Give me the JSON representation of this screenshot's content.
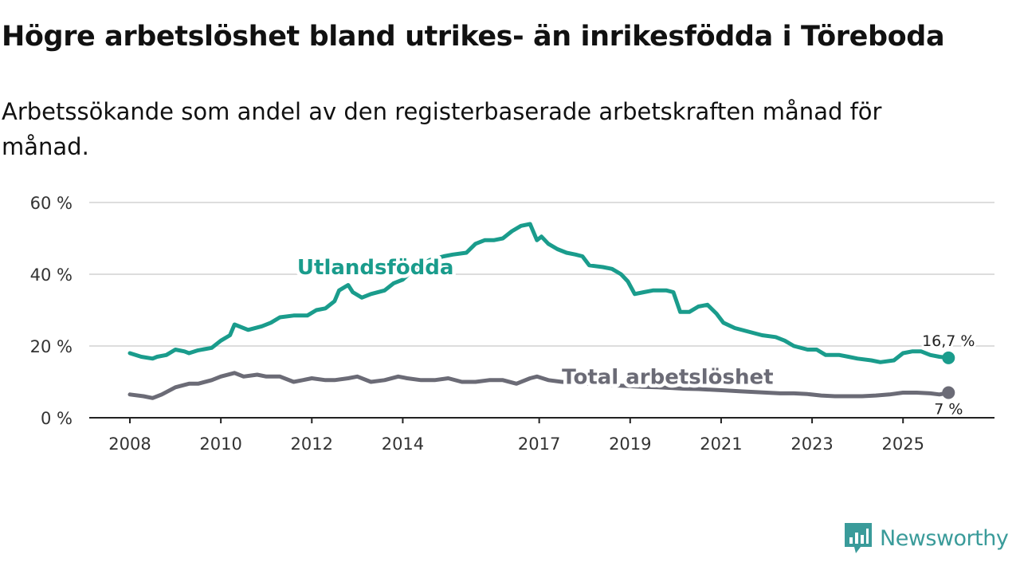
{
  "title": "Högre arbetslöshet bland utrikes- än inrikesfödda i Töreboda",
  "subtitle": "Arbetssökande som andel av den registerbaserade arbetskraften månad för månad.",
  "brand": {
    "name": "Newsworthy",
    "color": "#3a9b9a",
    "icon": "bar-chart-logo-icon"
  },
  "chart_data": {
    "type": "line",
    "title": "Högre arbetslöshet bland utrikes- än inrikesfödda i Töreboda",
    "xlabel": "",
    "ylabel": "",
    "xlim": [
      2008.0,
      2026.1
    ],
    "ylim": [
      0,
      60
    ],
    "yticks": [
      0,
      20,
      40,
      60
    ],
    "ytick_labels": [
      "0 %",
      "20 %",
      "40 %",
      "60 %"
    ],
    "xticks": [
      2008,
      2010,
      2012,
      2014,
      2017,
      2019,
      2021,
      2023,
      2025
    ],
    "xtick_labels": [
      "2008",
      "2010",
      "2012",
      "2014",
      "2017",
      "2019",
      "2021",
      "2023",
      "2025"
    ],
    "grid": true,
    "series": [
      {
        "name": "Utlandsfödda",
        "color": "#1a9c8c",
        "end_label": "16,7 %",
        "x": [
          2008.0,
          2008.25,
          2008.5,
          2008.6,
          2008.8,
          2009.0,
          2009.2,
          2009.3,
          2009.5,
          2009.8,
          2010.0,
          2010.2,
          2010.3,
          2010.6,
          2010.9,
          2011.1,
          2011.3,
          2011.6,
          2011.9,
          2012.1,
          2012.3,
          2012.5,
          2012.6,
          2012.8,
          2012.9,
          2013.1,
          2013.3,
          2013.6,
          2013.8,
          2014.0,
          2014.3,
          2014.6,
          2014.9,
          2015.1,
          2015.4,
          2015.6,
          2015.8,
          2016.0,
          2016.2,
          2016.4,
          2016.6,
          2016.8,
          2016.95,
          2017.05,
          2017.2,
          2017.4,
          2017.6,
          2017.8,
          2017.95,
          2018.1,
          2018.4,
          2018.6,
          2018.8,
          2018.95,
          2019.1,
          2019.3,
          2019.5,
          2019.8,
          2019.95,
          2020.1,
          2020.3,
          2020.5,
          2020.7,
          2020.9,
          2021.05,
          2021.3,
          2021.6,
          2021.9,
          2022.2,
          2022.4,
          2022.6,
          2022.9,
          2023.1,
          2023.3,
          2023.6,
          2023.8,
          2024.0,
          2024.3,
          2024.5,
          2024.8,
          2025.0,
          2025.2,
          2025.4,
          2025.6,
          2025.8,
          2026.0
        ],
        "y": [
          18.0,
          17.0,
          16.5,
          17.0,
          17.5,
          19.0,
          18.5,
          18.0,
          18.8,
          19.5,
          21.5,
          23.0,
          26.0,
          24.5,
          25.5,
          26.5,
          28.0,
          28.5,
          28.5,
          30.0,
          30.5,
          32.5,
          35.5,
          37.0,
          35.0,
          33.5,
          34.5,
          35.5,
          37.5,
          38.5,
          42.0,
          44.0,
          45.0,
          45.5,
          46.0,
          48.5,
          49.5,
          49.5,
          50.0,
          52.0,
          53.5,
          54.0,
          49.5,
          50.5,
          48.5,
          47.0,
          46.0,
          45.5,
          45.0,
          42.5,
          42.0,
          41.5,
          40.0,
          38.0,
          34.5,
          35.0,
          35.5,
          35.5,
          35.0,
          29.5,
          29.5,
          31.0,
          31.5,
          29.0,
          26.5,
          25.0,
          24.0,
          23.0,
          22.5,
          21.5,
          20.0,
          19.0,
          19.0,
          17.5,
          17.5,
          17.0,
          16.5,
          16.0,
          15.5,
          16.0,
          18.0,
          18.5,
          18.5,
          17.5,
          17.0,
          16.7
        ]
      },
      {
        "name": "Total arbetslöshet",
        "color": "#6b6b76",
        "end_label": "7 %",
        "x": [
          2008.0,
          2008.3,
          2008.5,
          2008.7,
          2009.0,
          2009.3,
          2009.5,
          2009.8,
          2010.0,
          2010.3,
          2010.5,
          2010.8,
          2011.0,
          2011.3,
          2011.6,
          2011.8,
          2012.0,
          2012.3,
          2012.5,
          2012.8,
          2013.0,
          2013.3,
          2013.6,
          2013.9,
          2014.1,
          2014.4,
          2014.7,
          2015.0,
          2015.3,
          2015.6,
          2015.9,
          2016.2,
          2016.5,
          2016.8,
          2016.95,
          2017.2,
          2017.5,
          2017.8,
          2018.1,
          2018.4,
          2018.7,
          2019.0,
          2019.3,
          2019.6,
          2019.9,
          2020.2,
          2020.5,
          2020.8,
          2021.1,
          2021.4,
          2021.7,
          2022.0,
          2022.3,
          2022.6,
          2022.9,
          2023.2,
          2023.5,
          2023.8,
          2024.1,
          2024.4,
          2024.7,
          2025.0,
          2025.3,
          2025.6,
          2025.8,
          2026.0
        ],
        "y": [
          6.5,
          6.0,
          5.5,
          6.5,
          8.5,
          9.5,
          9.5,
          10.5,
          11.5,
          12.5,
          11.5,
          12.0,
          11.5,
          11.5,
          10.0,
          10.5,
          11.0,
          10.5,
          10.5,
          11.0,
          11.5,
          10.0,
          10.5,
          11.5,
          11.0,
          10.5,
          10.5,
          11.0,
          10.0,
          10.0,
          10.5,
          10.5,
          9.5,
          11.0,
          11.5,
          10.5,
          10.0,
          9.8,
          9.5,
          9.2,
          9.0,
          8.8,
          8.6,
          8.5,
          8.3,
          8.1,
          8.0,
          7.8,
          7.6,
          7.4,
          7.2,
          7.0,
          6.8,
          6.8,
          6.6,
          6.2,
          6.0,
          6.0,
          6.0,
          6.2,
          6.5,
          7.0,
          7.0,
          6.8,
          6.5,
          7.0
        ]
      }
    ],
    "annotations": [
      {
        "text": "Utlandsfödda",
        "series": "Utlandsfödda",
        "x": 2013.4,
        "y": 40
      },
      {
        "text": "Total arbetslöshet",
        "series": "Total arbetslöshet",
        "x": 2017.5,
        "y": 9.5
      }
    ]
  }
}
